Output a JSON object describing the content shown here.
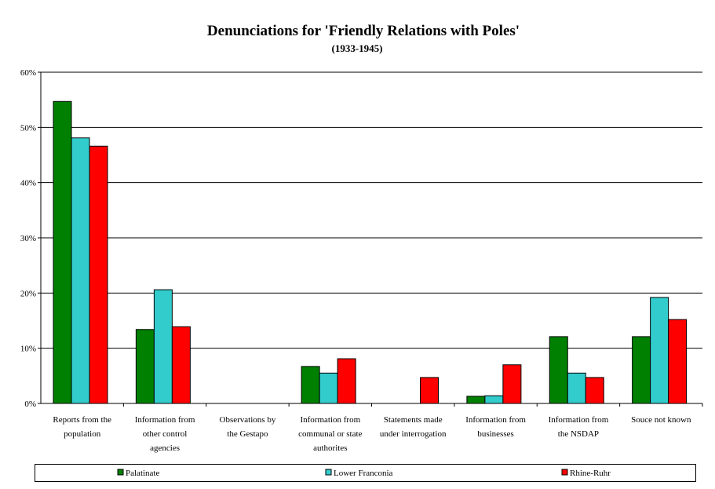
{
  "chart_data": {
    "type": "bar",
    "title": "Denunciations for 'Friendly Relations with Poles'",
    "subtitle": "(1933-1945)",
    "xlabel": "",
    "ylabel": "",
    "ylim": [
      0,
      60
    ],
    "yticks": [
      "0%",
      "10%",
      "20%",
      "30%",
      "40%",
      "50%",
      "60%"
    ],
    "grid": true,
    "legend_position": "bottom",
    "categories": [
      [
        "Reports from the",
        "population"
      ],
      [
        "Information from",
        "other control",
        "agencies"
      ],
      [
        "Observations by",
        "the Gestapo"
      ],
      [
        "Information from",
        "communal or state",
        "authorites"
      ],
      [
        "Statements made",
        "under interrogation"
      ],
      [
        "Information from",
        "businesses"
      ],
      [
        "Information from",
        "the NSDAP"
      ],
      [
        "Souce not known"
      ]
    ],
    "series": [
      {
        "name": "Palatinate",
        "color": "#008000",
        "values": [
          54.7,
          13.4,
          0,
          6.7,
          0,
          1.3,
          12.1,
          12.1
        ]
      },
      {
        "name": "Lower Franconia",
        "color": "#33CCCC",
        "values": [
          48.1,
          20.6,
          0,
          5.5,
          0,
          1.4,
          5.5,
          19.2
        ]
      },
      {
        "name": "Rhine-Ruhr",
        "color": "#FF0000",
        "values": [
          46.6,
          13.9,
          0,
          8.1,
          4.7,
          7.0,
          4.7,
          15.2
        ]
      }
    ]
  }
}
